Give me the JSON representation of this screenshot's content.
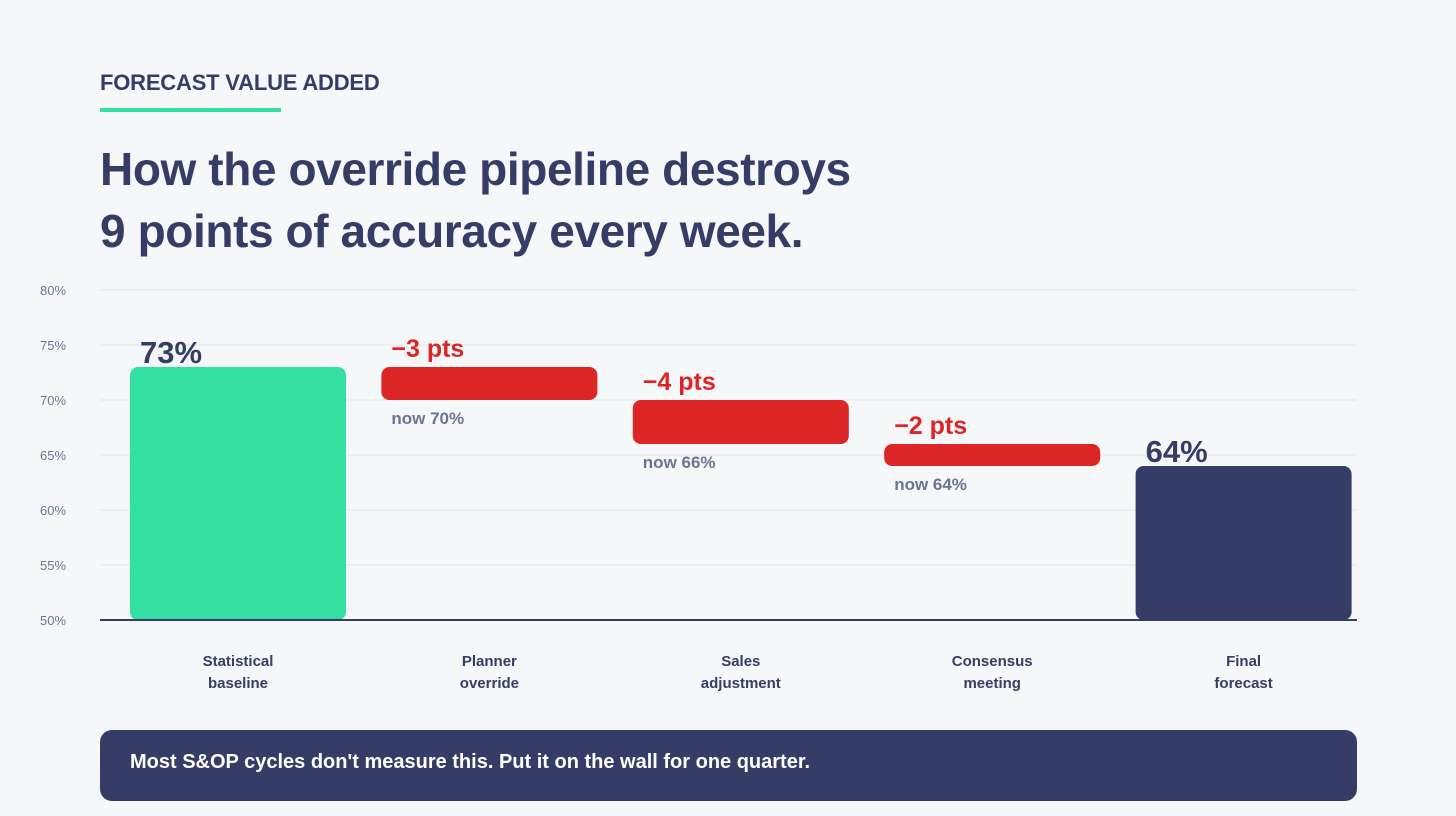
{
  "header": {
    "eyebrow": "FORECAST VALUE ADDED",
    "title_line1": "How the override pipeline destroys",
    "title_line2": "9 points of accuracy every week."
  },
  "colors": {
    "navy": "#353d66",
    "green": "#34e0a1",
    "red": "#dc2626",
    "muted": "#6b7591",
    "grid": "#e3e6ec"
  },
  "chart_data": {
    "type": "bar",
    "subtype": "waterfall",
    "ylim": [
      50,
      80
    ],
    "yticks": [
      50,
      55,
      60,
      65,
      70,
      75,
      80
    ],
    "ytick_labels": [
      "50%",
      "55%",
      "60%",
      "65%",
      "70%",
      "75%",
      "80%"
    ],
    "grid": true,
    "steps": [
      {
        "label_lines": [
          "Statistical",
          "baseline"
        ],
        "kind": "total",
        "from": 50,
        "to": 73,
        "value_label": "73%",
        "color": "#34e0a1"
      },
      {
        "label_lines": [
          "Planner",
          "override"
        ],
        "kind": "delta",
        "from": 73,
        "to": 70,
        "value_label": "−3 pts",
        "note": "now 70%",
        "color": "#dc2626"
      },
      {
        "label_lines": [
          "Sales",
          "adjustment"
        ],
        "kind": "delta",
        "from": 70,
        "to": 66,
        "value_label": "−4 pts",
        "note": "now 66%",
        "color": "#dc2626"
      },
      {
        "label_lines": [
          "Consensus",
          "meeting"
        ],
        "kind": "delta",
        "from": 66,
        "to": 64,
        "value_label": "−2 pts",
        "note": "now 64%",
        "color": "#dc2626"
      },
      {
        "label_lines": [
          "Final",
          "forecast"
        ],
        "kind": "total",
        "from": 50,
        "to": 64,
        "value_label": "64%",
        "color": "#353d66"
      }
    ]
  },
  "callout": {
    "text": "Most S&OP cycles don't measure this. Put it on the wall for one quarter."
  }
}
